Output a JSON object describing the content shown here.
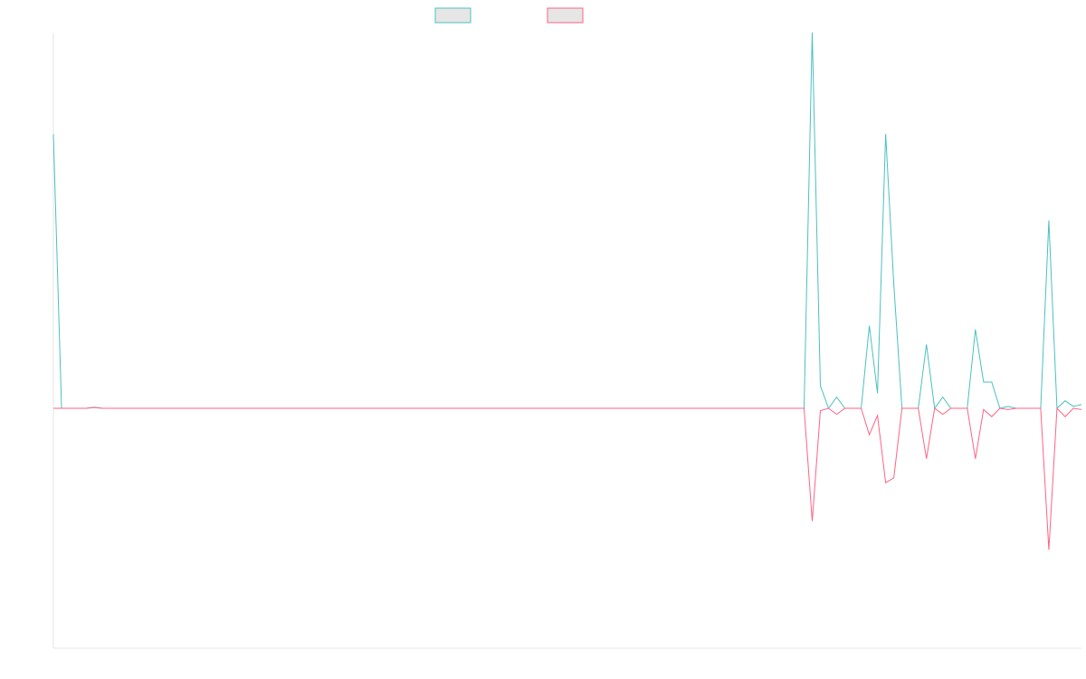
{
  "chart_data": {
    "type": "line",
    "title": "",
    "xlabel": "",
    "ylabel": "",
    "legend_position": "top-center",
    "grid": false,
    "ylim": [
      -1.0,
      1.0
    ],
    "series": [
      {
        "color": "#4bc0c0",
        "values": [
          0.73,
          0.0,
          0.0,
          0.0,
          0.0,
          0.003,
          0.0,
          0.0,
          0.0,
          0.0,
          0.0,
          0.0,
          0.0,
          0.0,
          0.0,
          0.0,
          0.0,
          0.0,
          0.0,
          0.0,
          0.0,
          0.0,
          0.0,
          0.0,
          0.0,
          0.0,
          0.0,
          0.0,
          0.0,
          0.0,
          0.0,
          0.0,
          0.0,
          0.0,
          0.0,
          0.0,
          0.0,
          0.0,
          0.0,
          0.0,
          0.0,
          0.0,
          0.0,
          0.0,
          0.0,
          0.0,
          0.0,
          0.0,
          0.0,
          0.0,
          0.0,
          0.0,
          0.0,
          0.0,
          0.0,
          0.0,
          0.0,
          0.0,
          0.0,
          0.0,
          0.0,
          0.0,
          0.0,
          0.0,
          0.0,
          0.0,
          0.0,
          0.0,
          0.0,
          0.0,
          0.0,
          0.0,
          0.0,
          0.0,
          0.0,
          0.0,
          0.0,
          0.0,
          0.0,
          0.0,
          0.0,
          0.0,
          0.0,
          0.0,
          0.0,
          0.0,
          0.0,
          0.0,
          0.0,
          0.0,
          0.0,
          0.0,
          0.0,
          1.0,
          0.06,
          0.0,
          0.03,
          0.0,
          0.0,
          0.0,
          0.22,
          0.04,
          0.73,
          0.33,
          0.0,
          0.0,
          0.0,
          0.17,
          0.0,
          0.03,
          0.0,
          0.0,
          0.0,
          0.21,
          0.07,
          0.07,
          0.0,
          0.005,
          0.0,
          0.0,
          0.0,
          0.0,
          0.5,
          0.0,
          0.02,
          0.005,
          0.01
        ]
      },
      {
        "color": "#ff6384",
        "values": [
          0.0,
          0.0,
          0.0,
          0.0,
          0.0,
          0.002,
          0.0,
          0.0,
          0.0,
          0.0,
          0.0,
          0.0,
          0.0,
          0.0,
          0.0,
          0.0,
          0.0,
          0.0,
          0.0,
          0.0,
          0.0,
          0.0,
          0.0,
          0.0,
          0.0,
          0.0,
          0.0,
          0.0,
          0.0,
          0.0,
          0.0,
          0.0,
          0.0,
          0.0,
          0.0,
          0.0,
          0.0,
          0.0,
          0.0,
          0.0,
          0.0,
          0.0,
          0.0,
          0.0,
          0.0,
          0.0,
          0.0,
          0.0,
          0.0,
          0.0,
          0.0,
          0.0,
          0.0,
          0.0,
          0.0,
          0.0,
          0.0,
          0.0,
          0.0,
          0.0,
          0.0,
          0.0,
          0.0,
          0.0,
          0.0,
          0.0,
          0.0,
          0.0,
          0.0,
          0.0,
          0.0,
          0.0,
          0.0,
          0.0,
          0.0,
          0.0,
          0.0,
          0.0,
          0.0,
          0.0,
          0.0,
          0.0,
          0.0,
          0.0,
          0.0,
          0.0,
          0.0,
          0.0,
          0.0,
          0.0,
          0.0,
          0.0,
          0.0,
          -0.47,
          -0.01,
          0.0,
          -0.025,
          0.0,
          0.0,
          0.0,
          -0.11,
          -0.03,
          -0.31,
          -0.29,
          0.0,
          0.0,
          0.0,
          -0.21,
          0.0,
          -0.025,
          0.0,
          0.0,
          0.0,
          -0.21,
          -0.005,
          -0.035,
          0.0,
          -0.005,
          0.0,
          0.0,
          0.0,
          0.0,
          -0.59,
          0.0,
          -0.035,
          0.0,
          -0.005
        ]
      }
    ]
  }
}
